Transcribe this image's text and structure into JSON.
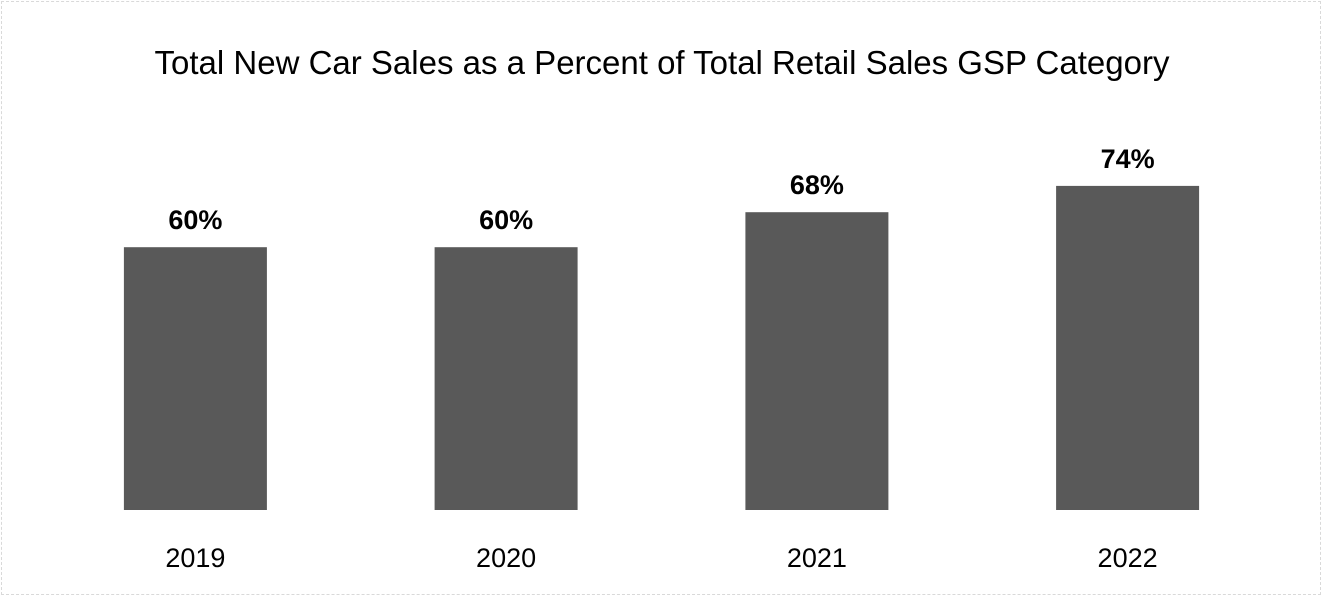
{
  "chart_data": {
    "type": "bar",
    "title": "Total New Car Sales as a Percent of Total Retail Sales GSP Category",
    "categories": [
      "2019",
      "2020",
      "2021",
      "2022"
    ],
    "values": [
      60,
      60,
      68,
      74
    ],
    "data_labels": [
      "60%",
      "60%",
      "68%",
      "74%"
    ],
    "xlabel": "",
    "ylabel": "",
    "ylim": [
      0,
      80
    ],
    "grid": false,
    "legend": "none",
    "bar_color": "#595959"
  }
}
